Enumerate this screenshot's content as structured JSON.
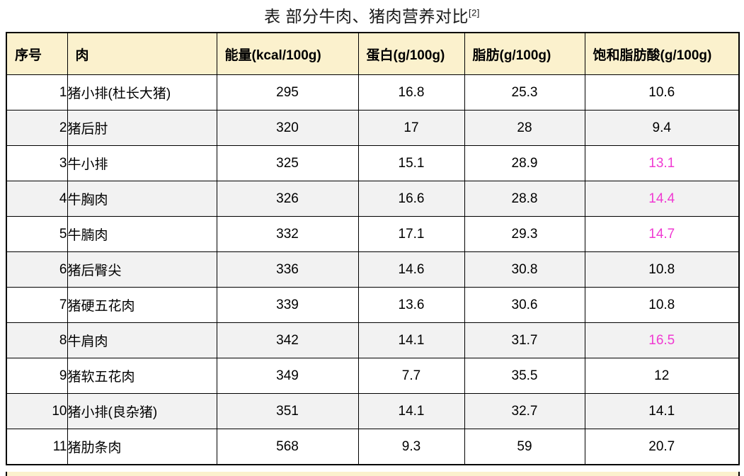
{
  "title": {
    "text": "表 部分牛肉、猪肉营养对比",
    "reference": "[2]"
  },
  "colors": {
    "header_bg": "#fbf1cd",
    "alt_row_bg": "#f2f2f2",
    "highlight_text": "#f03ad2",
    "border": "#000000"
  },
  "chart_data": {
    "type": "table",
    "title": "表 部分牛肉、猪肉营养对比[2]",
    "columns": [
      "序号",
      "肉",
      "能量(kcal/100g)",
      "蛋白(g/100g)",
      "脂肪(g/100g)",
      "饱和脂肪酸(g/100g)"
    ],
    "rows": [
      [
        "1",
        "猪小排(杜长大猪)",
        "295",
        "16.8",
        "25.3",
        "10.6"
      ],
      [
        "2",
        "猪后肘",
        "320",
        "17",
        "28",
        "9.4"
      ],
      [
        "3",
        "牛小排",
        "325",
        "15.1",
        "28.9",
        "13.1"
      ],
      [
        "4",
        "牛胸肉",
        "326",
        "16.6",
        "28.8",
        "14.4"
      ],
      [
        "5",
        "牛腩肉",
        "332",
        "17.1",
        "29.3",
        "14.7"
      ],
      [
        "6",
        "猪后臀尖",
        "336",
        "14.6",
        "30.8",
        "10.8"
      ],
      [
        "7",
        "猪硬五花肉",
        "339",
        "13.6",
        "30.6",
        "10.8"
      ],
      [
        "8",
        "牛肩肉",
        "342",
        "14.1",
        "31.7",
        "16.5"
      ],
      [
        "9",
        "猪软五花肉",
        "349",
        "7.7",
        "35.5",
        "12"
      ],
      [
        "10",
        "猪小排(良杂猪)",
        "351",
        "14.1",
        "32.7",
        "14.1"
      ],
      [
        "11",
        "猪肋条肉",
        "568",
        "9.3",
        "59",
        "20.7"
      ]
    ],
    "highlighted_saturated_fat_row_indexes": [
      2,
      3,
      4,
      7
    ],
    "highlight_note_color": "#f03ad2",
    "layout": {
      "alternating_row_shading": true,
      "header_background": "#fbf1cd"
    }
  }
}
